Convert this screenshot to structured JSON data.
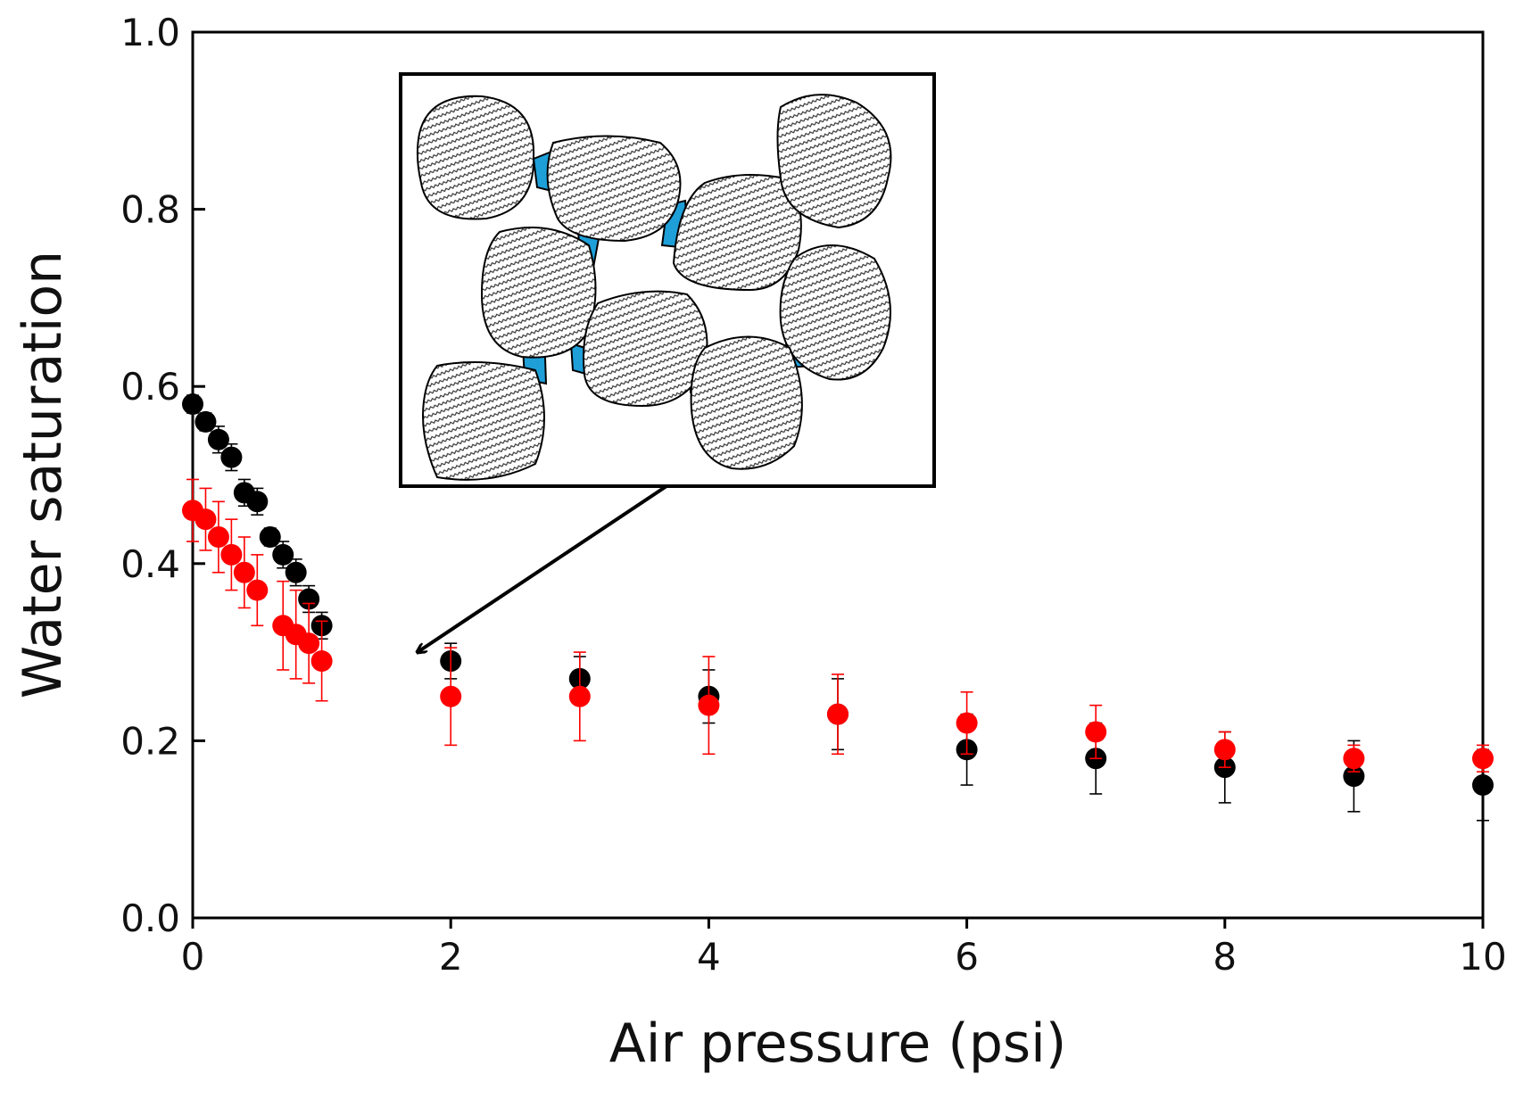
{
  "chart_data": {
    "type": "scatter",
    "xlabel": "Air pressure (psi)",
    "ylabel": "Water saturation",
    "xlim": [
      0,
      10
    ],
    "xticks": [
      0,
      2,
      4,
      6,
      8,
      10
    ],
    "ylim": [
      0,
      1
    ],
    "yticks": [
      {
        "value": 0,
        "label": "0.0"
      },
      0.2,
      0.4,
      0.6,
      0.8,
      {
        "value": 1,
        "label": "1.0"
      }
    ],
    "grid": false,
    "series": [
      {
        "color": "#000000",
        "x": [
          0,
          0.1,
          0.2,
          0.3,
          0.4,
          0.5,
          0.6,
          0.7,
          0.8,
          0.9,
          1,
          2,
          3,
          4,
          5,
          6,
          7,
          8,
          9,
          10
        ],
        "values": [
          0.58,
          0.56,
          0.54,
          0.52,
          0.48,
          0.47,
          0.43,
          0.41,
          0.39,
          0.36,
          0.33,
          0.29,
          0.27,
          0.25,
          0.23,
          0.19,
          0.18,
          0.17,
          0.16,
          0.15
        ],
        "errors": [
          0.01,
          0.01,
          0.015,
          0.015,
          0.015,
          0.015,
          0.01,
          0.015,
          0.015,
          0.015,
          0.015,
          0.02,
          0.025,
          0.03,
          0.04,
          0.04,
          0.04,
          0.04,
          0.04,
          0.04
        ]
      },
      {
        "color": "#ff0000",
        "x": [
          0,
          0.1,
          0.2,
          0.3,
          0.4,
          0.5,
          0.7,
          0.8,
          0.9,
          1,
          2,
          3,
          4,
          5,
          6,
          7,
          8,
          9,
          10
        ],
        "values": [
          0.46,
          0.45,
          0.43,
          0.41,
          0.39,
          0.37,
          0.33,
          0.32,
          0.31,
          0.29,
          0.25,
          0.25,
          0.24,
          0.23,
          0.22,
          0.21,
          0.19,
          0.18,
          0.18
        ],
        "errors": [
          0.035,
          0.035,
          0.04,
          0.04,
          0.04,
          0.04,
          0.05,
          0.05,
          0.045,
          0.045,
          0.055,
          0.05,
          0.055,
          0.045,
          0.035,
          0.03,
          0.02,
          0.015,
          0.015
        ]
      }
    ]
  }
}
